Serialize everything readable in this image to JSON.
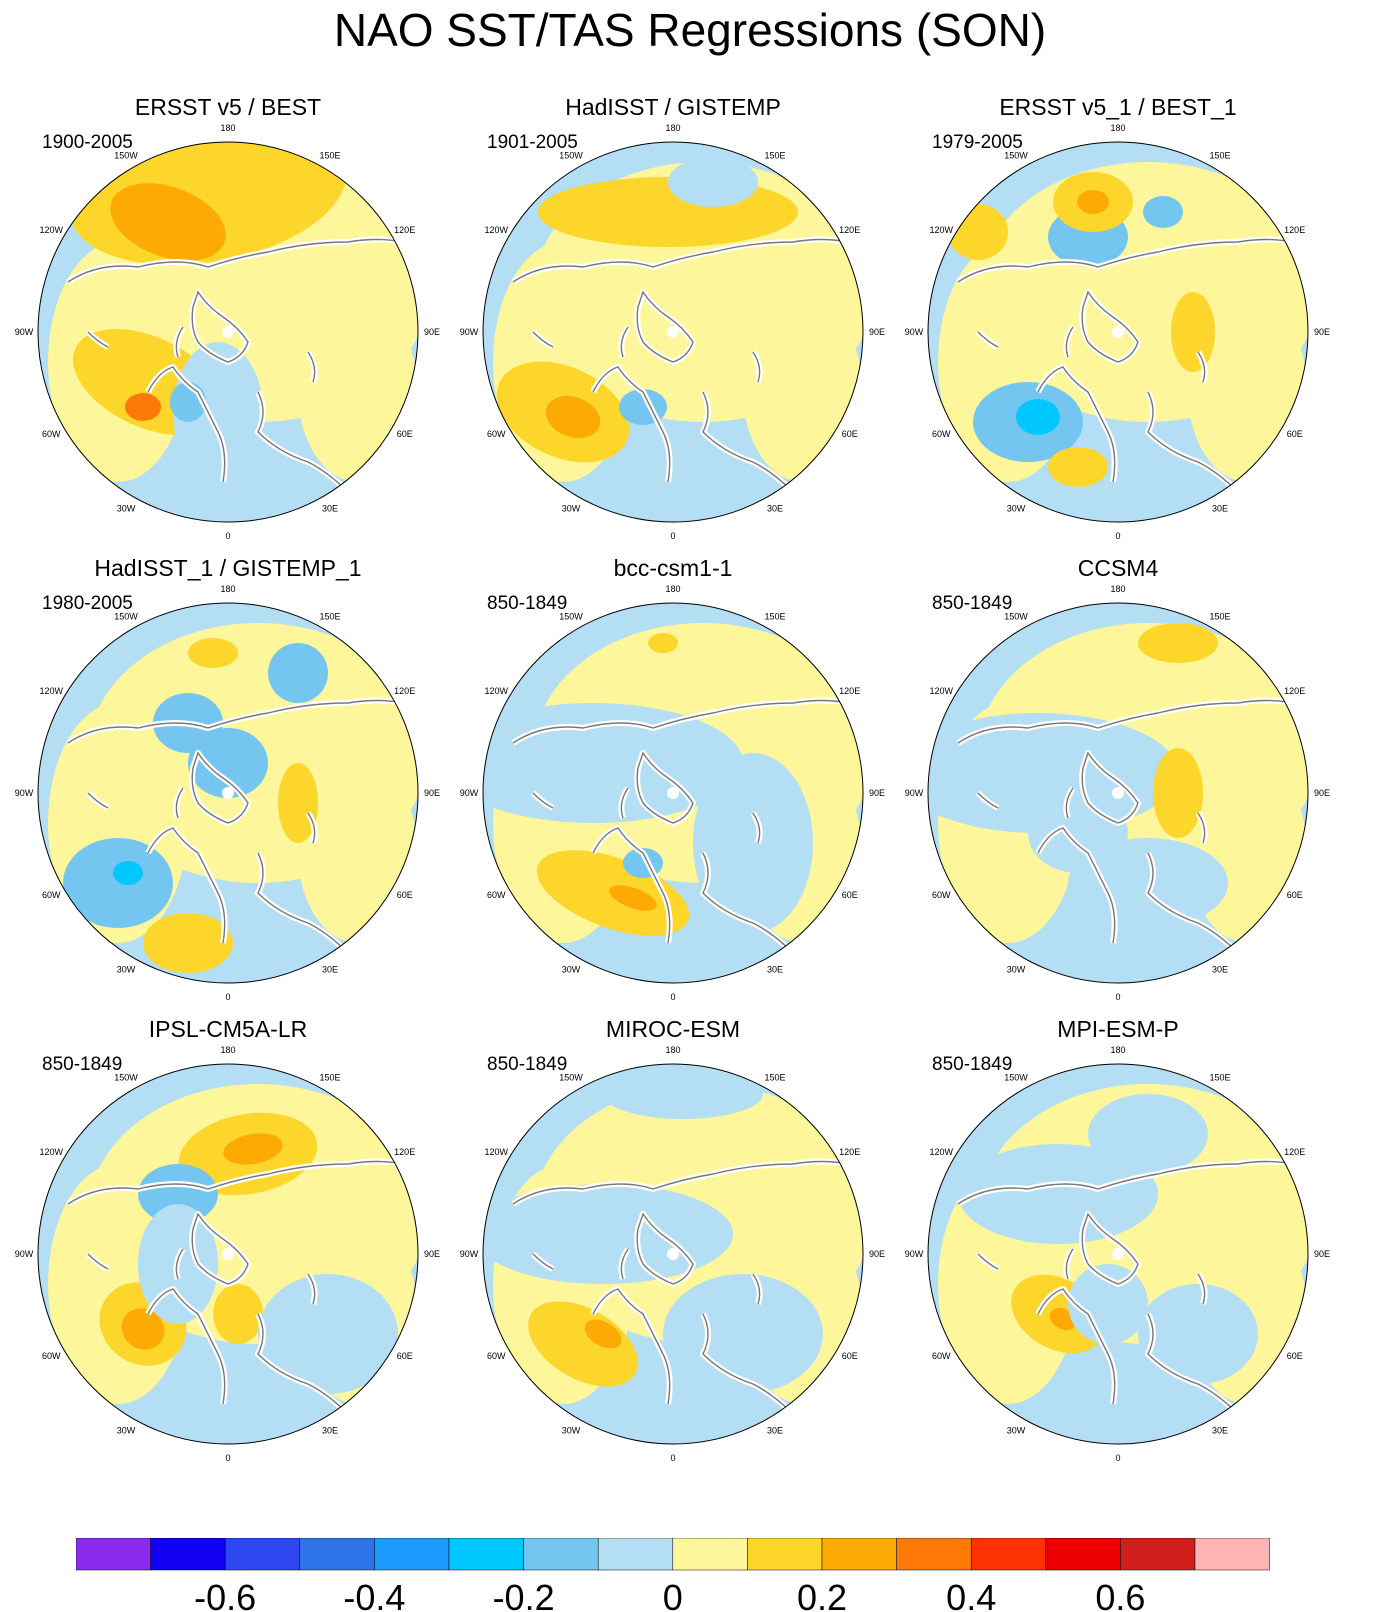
{
  "title": "NAO SST/TAS Regressions (SON)",
  "palette": [
    "#8b2bf0",
    "#1200f5",
    "#2c46f0",
    "#3074ea",
    "#1c9bff",
    "#00c8ff",
    "#74c6f1",
    "#b4def3",
    "#fdf69a",
    "#fdd62c",
    "#fdaa04",
    "#fd7a08",
    "#ff3203",
    "#ea0100",
    "#d31f1c",
    "#ffb5b5"
  ],
  "panels": [
    {
      "title": "ERSST v5 / BEST",
      "period": "1900-2005"
    },
    {
      "title": "HadISST / GISTEMP",
      "period": "1901-2005"
    },
    {
      "title": "ERSST v5_1 / BEST_1",
      "period": "1979-2005"
    },
    {
      "title": "HadISST_1 / GISTEMP_1",
      "period": "1980-2005"
    },
    {
      "title": "bcc-csm1-1",
      "period": "850-1849"
    },
    {
      "title": "CCSM4",
      "period": "850-1849"
    },
    {
      "title": "IPSL-CM5A-LR",
      "period": "850-1849"
    },
    {
      "title": "MIROC-ESM",
      "period": "850-1849"
    },
    {
      "title": "MPI-ESM-P",
      "period": "850-1849"
    }
  ],
  "longitude_labels": [
    "180",
    "150E",
    "120E",
    "90E",
    "60E",
    "30E",
    "0",
    "30W",
    "60W",
    "90W",
    "120W",
    "150W"
  ],
  "colorbar": {
    "tick_labels": [
      "-0.6",
      "-0.4",
      "-0.2",
      "0",
      "0.2",
      "0.4",
      "0.6"
    ]
  }
}
